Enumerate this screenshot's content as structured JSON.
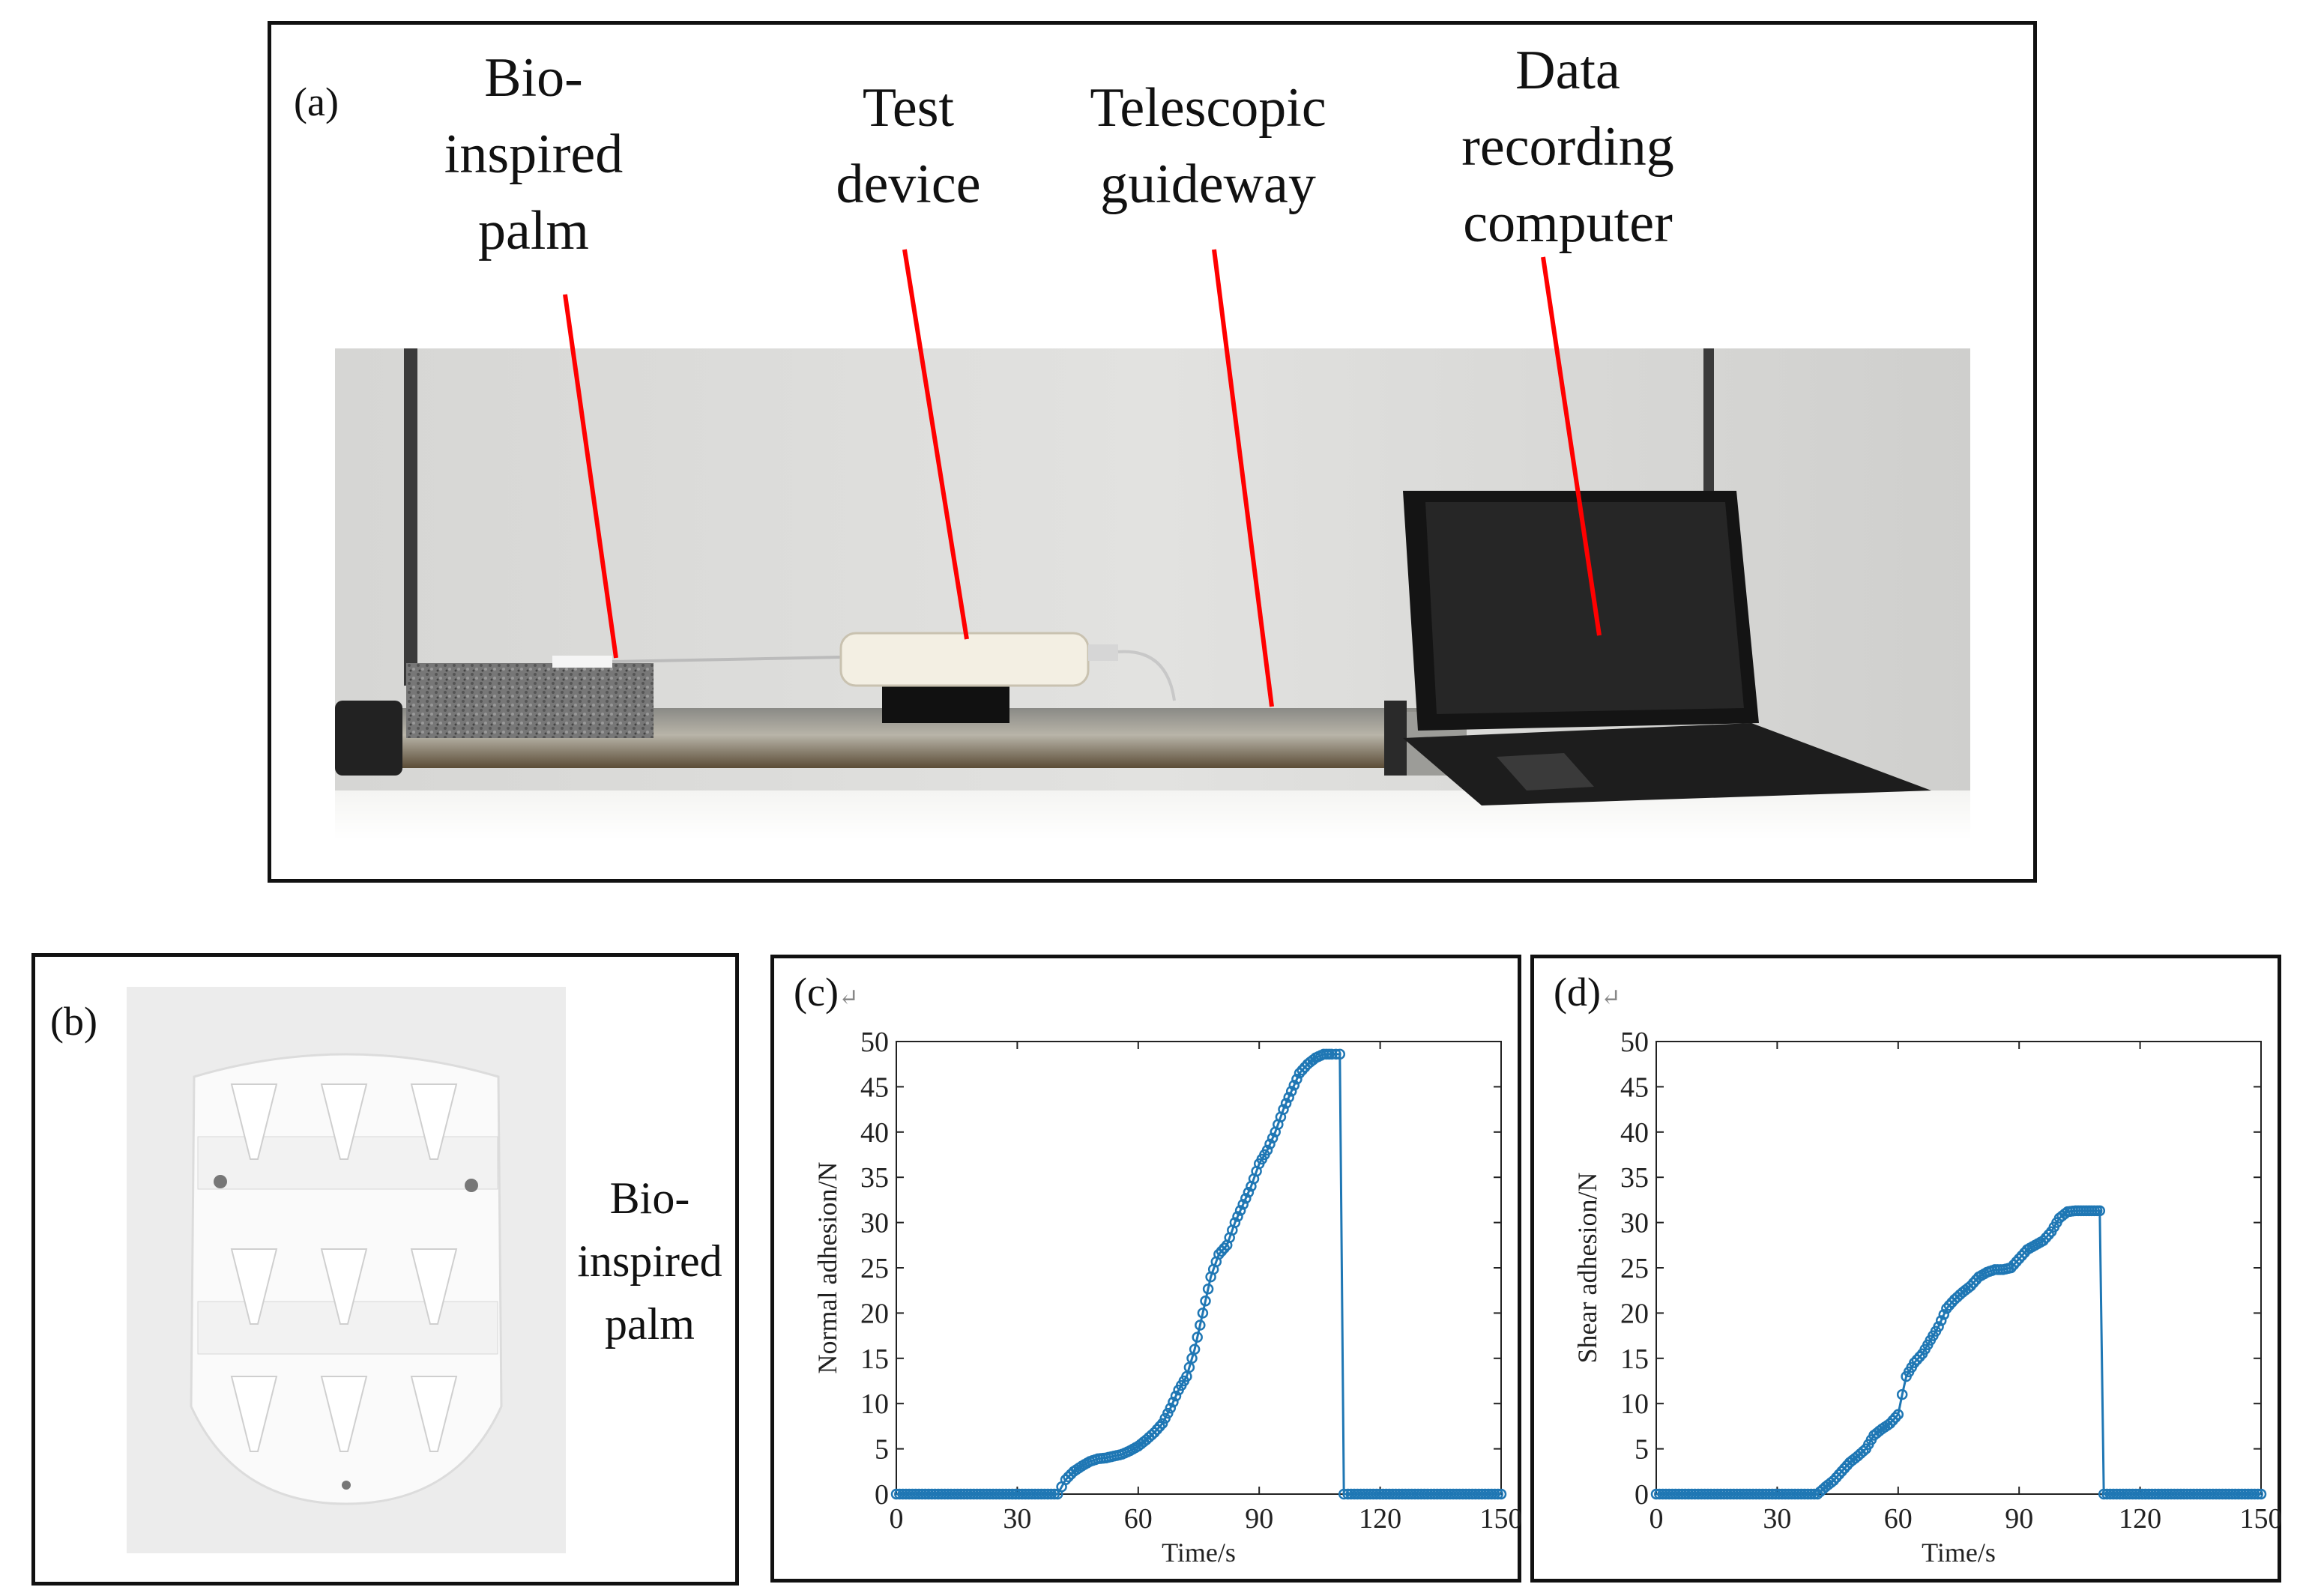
{
  "panel_a": {
    "tag": "(a)",
    "labels": [
      {
        "lines": [
          "Bio-",
          "inspired",
          "palm"
        ]
      },
      {
        "lines": [
          "Test",
          "device"
        ]
      },
      {
        "lines": [
          "Telescopic",
          "guideway"
        ]
      },
      {
        "lines": [
          "Data",
          "recording",
          "computer"
        ]
      }
    ]
  },
  "panel_b": {
    "tag": "(b)",
    "label_lines": [
      "Bio-",
      "inspired",
      "palm"
    ]
  },
  "panel_c": {
    "tag": "(c)",
    "return_mark": "↵"
  },
  "panel_d": {
    "tag": "(d)",
    "return_mark": "↵"
  },
  "colors": {
    "series": "#1f77b4",
    "pointer": "#ff0000",
    "frame": "#111111"
  },
  "chart_data": [
    {
      "type": "scatter",
      "panel": "(c)",
      "xlabel": "Time/s",
      "ylabel": "Normal adhesion/N",
      "xlim": [
        0,
        150
      ],
      "ylim": [
        0,
        50
      ],
      "xticks": [
        0,
        30,
        60,
        90,
        120,
        150
      ],
      "yticks": [
        0,
        5,
        10,
        15,
        20,
        25,
        30,
        35,
        40,
        45,
        50
      ],
      "marker": "open circle",
      "line": "connected",
      "series": [
        {
          "x": [
            0,
            40,
            41,
            42,
            44,
            46,
            48,
            50,
            52,
            54,
            56,
            58,
            60,
            62,
            64,
            66,
            68,
            70,
            72,
            74,
            76,
            78,
            80,
            82,
            84,
            86,
            88,
            90,
            92,
            94,
            96,
            98,
            100,
            102,
            104,
            106,
            108,
            109,
            110,
            111,
            112,
            150
          ],
          "y": [
            0,
            0,
            0.8,
            1.6,
            2.5,
            3.1,
            3.6,
            3.9,
            4.0,
            4.2,
            4.4,
            4.8,
            5.3,
            6.0,
            6.8,
            7.8,
            9.5,
            11.5,
            13.0,
            16.0,
            20.0,
            24.0,
            26.5,
            27.5,
            30.0,
            32.0,
            34.0,
            36.5,
            38.0,
            40.0,
            42.5,
            44.5,
            46.5,
            47.5,
            48.2,
            48.6,
            48.6,
            48.6,
            48.6,
            0,
            0,
            0
          ]
        }
      ]
    },
    {
      "type": "scatter",
      "panel": "(d)",
      "xlabel": "Time/s",
      "ylabel": "Shear adhesion/N",
      "xlim": [
        0,
        150
      ],
      "ylim": [
        0,
        50
      ],
      "xticks": [
        0,
        30,
        60,
        90,
        120,
        150
      ],
      "yticks": [
        0,
        5,
        10,
        15,
        20,
        25,
        30,
        35,
        40,
        45,
        50
      ],
      "marker": "open circle",
      "line": "connected",
      "series": [
        {
          "x": [
            0,
            40,
            42,
            44,
            46,
            48,
            50,
            52,
            54,
            56,
            58,
            60,
            61,
            62,
            64,
            66,
            68,
            70,
            72,
            74,
            76,
            78,
            80,
            82,
            84,
            86,
            88,
            90,
            92,
            94,
            96,
            98,
            100,
            102,
            104,
            106,
            108,
            110,
            111,
            150
          ],
          "y": [
            0,
            0,
            0.8,
            1.5,
            2.5,
            3.5,
            4.2,
            5.0,
            6.5,
            7.2,
            7.8,
            8.8,
            11.0,
            13.0,
            14.5,
            15.5,
            17.0,
            18.5,
            20.5,
            21.5,
            22.3,
            23.0,
            24.0,
            24.5,
            24.8,
            24.8,
            25.0,
            26.0,
            27.0,
            27.5,
            28.0,
            29.0,
            30.5,
            31.2,
            31.3,
            31.3,
            31.3,
            31.3,
            0,
            0
          ]
        }
      ]
    }
  ]
}
